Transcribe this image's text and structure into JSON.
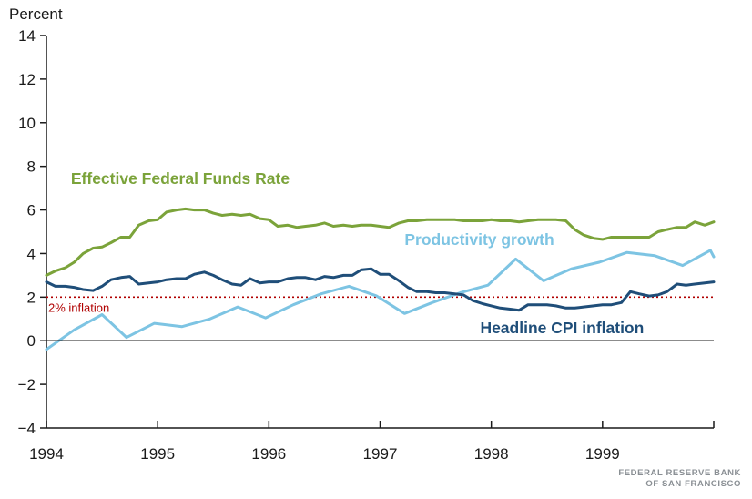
{
  "source_lines": [
    "FEDERAL RESERVE BANK",
    "OF SAN FRANCISCO"
  ],
  "colors": {
    "fed_funds": "#7ba33a",
    "productivity": "#7dc4e3",
    "cpi": "#1f4e79",
    "reference": "#b00000",
    "axis": "#1a1a1a"
  },
  "chart_data": {
    "type": "line",
    "ylabel": "Percent",
    "xlabel": "",
    "ylim": [
      -4,
      14
    ],
    "xlim": [
      1994,
      2000
    ],
    "y_ticks": [
      -4,
      -2,
      0,
      2,
      4,
      6,
      8,
      10,
      12,
      14
    ],
    "y_tick_labels": [
      "−4",
      "−2",
      "0",
      "2",
      "4",
      "6",
      "8",
      "10",
      "12",
      "14"
    ],
    "x_ticks": [
      1994,
      1995,
      1996,
      1997,
      1998,
      1999
    ],
    "x_tick_labels": [
      "1994",
      "1995",
      "1996",
      "1997",
      "1998",
      "1999"
    ],
    "grid": false,
    "reference_line": {
      "value": 2,
      "label": "2% inflation",
      "style": "dotted"
    },
    "series": [
      {
        "name": "Effective Federal Funds Rate",
        "color_key": "fed_funds",
        "x": [
          1994.0,
          1994.08,
          1994.17,
          1994.25,
          1994.33,
          1994.42,
          1994.5,
          1994.58,
          1994.67,
          1994.75,
          1994.83,
          1994.92,
          1995.0,
          1995.08,
          1995.17,
          1995.25,
          1995.33,
          1995.42,
          1995.5,
          1995.58,
          1995.67,
          1995.75,
          1995.83,
          1995.92,
          1996.0,
          1996.08,
          1996.17,
          1996.25,
          1996.33,
          1996.42,
          1996.5,
          1996.58,
          1996.67,
          1996.75,
          1996.83,
          1996.92,
          1997.0,
          1997.08,
          1997.17,
          1997.25,
          1997.33,
          1997.42,
          1997.5,
          1997.58,
          1997.67,
          1997.75,
          1997.83,
          1997.92,
          1998.0,
          1998.08,
          1998.17,
          1998.25,
          1998.33,
          1998.42,
          1998.5,
          1998.58,
          1998.67,
          1998.75,
          1998.83,
          1998.92,
          1999.0,
          1999.08,
          1999.17,
          1999.25,
          1999.33,
          1999.42,
          1999.5,
          1999.58,
          1999.67,
          1999.75,
          1999.83,
          1999.92,
          2000.0
        ],
        "values": [
          3.0,
          3.2,
          3.35,
          3.6,
          4.0,
          4.25,
          4.3,
          4.5,
          4.75,
          4.75,
          5.3,
          5.5,
          5.55,
          5.9,
          6.0,
          6.05,
          6.0,
          6.0,
          5.85,
          5.75,
          5.8,
          5.75,
          5.8,
          5.6,
          5.55,
          5.25,
          5.3,
          5.2,
          5.25,
          5.3,
          5.4,
          5.25,
          5.3,
          5.25,
          5.3,
          5.3,
          5.25,
          5.2,
          5.4,
          5.5,
          5.5,
          5.55,
          5.55,
          5.55,
          5.55,
          5.5,
          5.5,
          5.5,
          5.55,
          5.5,
          5.5,
          5.45,
          5.5,
          5.55,
          5.55,
          5.55,
          5.5,
          5.1,
          4.85,
          4.7,
          4.65,
          4.75,
          4.75,
          4.75,
          4.75,
          4.75,
          5.0,
          5.1,
          5.2,
          5.2,
          5.45,
          5.3,
          5.45
        ]
      },
      {
        "name": "Productivity growth",
        "color_key": "productivity",
        "x": [
          1994.0,
          1994.25,
          1994.5,
          1994.72,
          1994.97,
          1995.22,
          1995.47,
          1995.72,
          1995.97,
          1996.22,
          1996.47,
          1996.72,
          1996.97,
          1997.22,
          1997.47,
          1997.72,
          1997.97,
          1998.22,
          1998.47,
          1998.72,
          1998.97,
          1999.22,
          1999.47,
          1999.72,
          1999.97,
          2000.0
        ],
        "values": [
          -0.4,
          0.5,
          1.2,
          0.15,
          0.8,
          0.65,
          1.0,
          1.55,
          1.05,
          1.65,
          2.15,
          2.5,
          2.05,
          1.25,
          1.75,
          2.2,
          2.55,
          3.75,
          2.75,
          3.3,
          3.6,
          4.05,
          3.9,
          3.45,
          4.15,
          3.85
        ]
      },
      {
        "name": "Headline CPI inflation",
        "color_key": "cpi",
        "x": [
          1994.0,
          1994.08,
          1994.17,
          1994.25,
          1994.33,
          1994.42,
          1994.5,
          1994.58,
          1994.67,
          1994.75,
          1994.83,
          1994.92,
          1995.0,
          1995.08,
          1995.17,
          1995.25,
          1995.33,
          1995.42,
          1995.5,
          1995.58,
          1995.67,
          1995.75,
          1995.83,
          1995.92,
          1996.0,
          1996.08,
          1996.17,
          1996.25,
          1996.33,
          1996.42,
          1996.5,
          1996.58,
          1996.67,
          1996.75,
          1996.83,
          1996.92,
          1997.0,
          1997.08,
          1997.17,
          1997.25,
          1997.33,
          1997.42,
          1997.5,
          1997.58,
          1997.67,
          1997.75,
          1997.83,
          1997.92,
          1998.0,
          1998.08,
          1998.17,
          1998.25,
          1998.33,
          1998.42,
          1998.5,
          1998.58,
          1998.67,
          1998.75,
          1998.83,
          1998.92,
          1999.0,
          1999.08,
          1999.17,
          1999.25,
          1999.33,
          1999.42,
          1999.5,
          1999.58,
          1999.67,
          1999.75,
          1999.83,
          1999.92,
          2000.0
        ],
        "values": [
          2.7,
          2.5,
          2.5,
          2.45,
          2.35,
          2.3,
          2.5,
          2.8,
          2.9,
          2.95,
          2.6,
          2.65,
          2.7,
          2.8,
          2.85,
          2.85,
          3.05,
          3.15,
          3.0,
          2.8,
          2.6,
          2.55,
          2.85,
          2.65,
          2.7,
          2.7,
          2.85,
          2.9,
          2.9,
          2.8,
          2.95,
          2.9,
          3.0,
          3.0,
          3.25,
          3.3,
          3.05,
          3.05,
          2.75,
          2.45,
          2.25,
          2.25,
          2.2,
          2.2,
          2.15,
          2.1,
          1.85,
          1.7,
          1.6,
          1.5,
          1.45,
          1.4,
          1.65,
          1.65,
          1.65,
          1.6,
          1.5,
          1.5,
          1.55,
          1.6,
          1.65,
          1.65,
          1.75,
          2.25,
          2.15,
          2.05,
          2.1,
          2.25,
          2.6,
          2.55,
          2.6,
          2.65,
          2.7
        ]
      }
    ]
  }
}
